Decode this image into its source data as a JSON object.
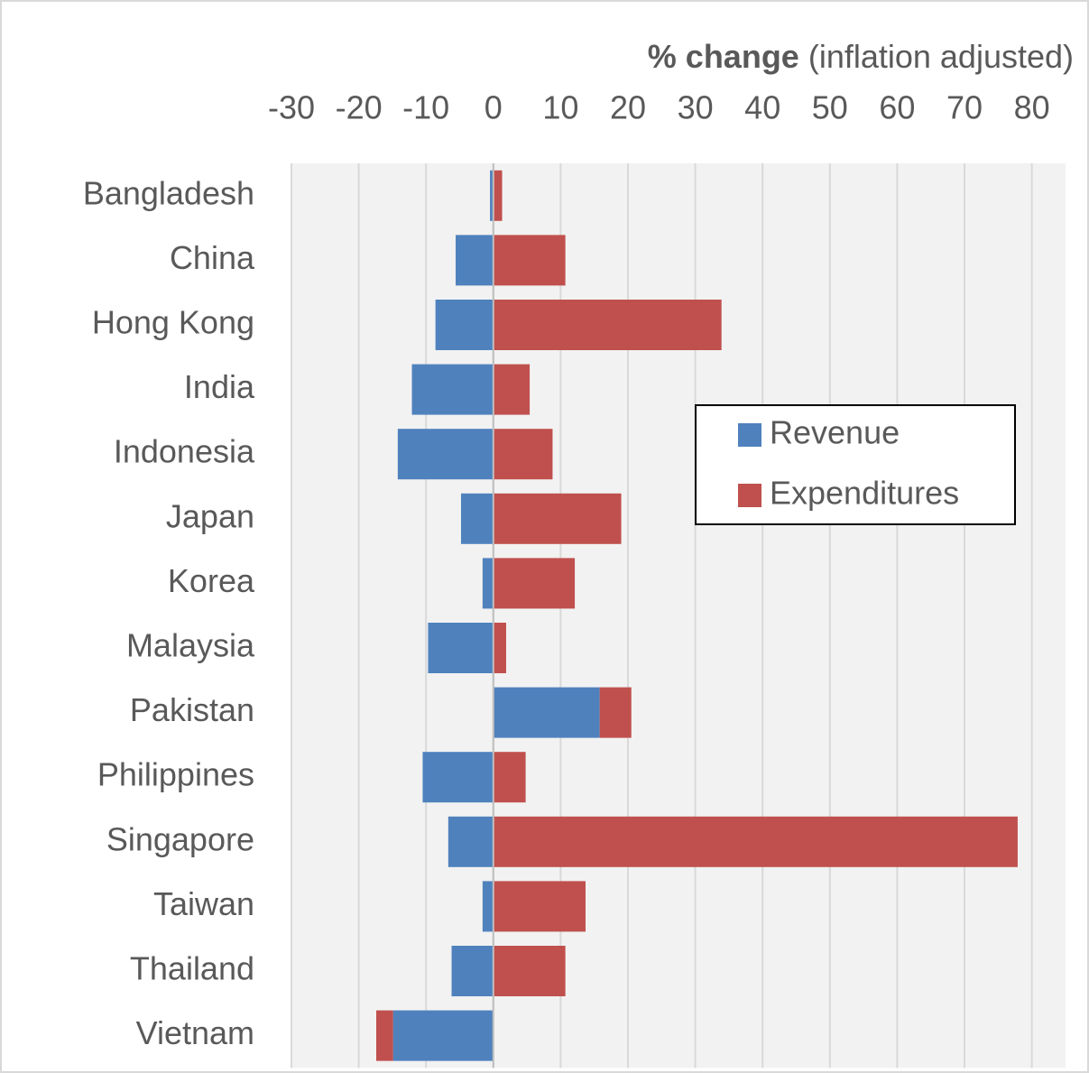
{
  "chart_data": {
    "type": "stacked_bar_horizontal",
    "x_label_bold": "% change",
    "x_label": "(inflation adjusted)",
    "categories": [
      "Bangladesh",
      "China",
      "Hong Kong",
      "India",
      "Indonesia",
      "Japan",
      "Korea",
      "Malaysia",
      "Pakistan",
      "Philippines",
      "Singapore",
      "Taiwan",
      "Thailand",
      "Vietnam"
    ],
    "series": [
      {
        "name": "Revenue",
        "color": "#4f81bd",
        "values": [
          -0.5,
          -5.6,
          -8.6,
          -12.1,
          -14.2,
          -4.8,
          -1.6,
          -9.7,
          15.8,
          -10.5,
          -6.7,
          -1.6,
          -6.2,
          -14.9
        ]
      },
      {
        "name": "Expenditures",
        "color": "#c0504d",
        "values": [
          1.3,
          10.7,
          33.9,
          5.4,
          8.8,
          19.0,
          12.1,
          1.9,
          4.7,
          4.8,
          77.9,
          13.7,
          10.7,
          -2.5
        ]
      }
    ],
    "xlim": [
      -30,
      85
    ],
    "xticks": [
      -30,
      -20,
      -10,
      0,
      10,
      20,
      30,
      40,
      50,
      60,
      70,
      80
    ],
    "grid": true,
    "legend": "right"
  }
}
